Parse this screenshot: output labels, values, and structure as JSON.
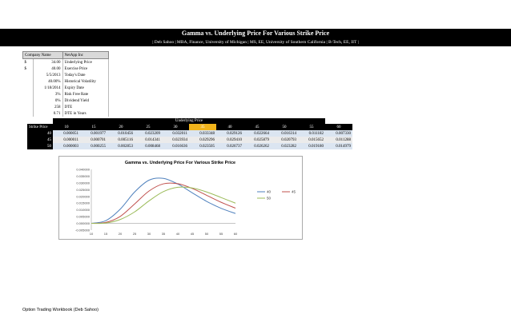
{
  "header": {
    "title": "Gamma vs. Underlying Price For Various Strike Price",
    "subtitle": "| Deb Sahoo | MBA, Finance, University of Michigan | MS, EE, University of Southern California | B-Tech, EE, IIT |"
  },
  "inputs": {
    "header": [
      "Company Name",
      "NetApp Inc"
    ],
    "rows": [
      {
        "cur": "$",
        "value": "34.00",
        "label": "Underlying Price"
      },
      {
        "cur": "$",
        "value": "40.00",
        "label": "Exercise Price"
      },
      {
        "cur": "",
        "value": "5/5/2013",
        "label": "Today's Date"
      },
      {
        "cur": "",
        "value": "40.00%",
        "label": "Historical Volatility"
      },
      {
        "cur": "",
        "value": "1/18/2014",
        "label": "Expiry Date"
      },
      {
        "cur": "",
        "value": "3%",
        "label": "Risk Free Rate"
      },
      {
        "cur": "",
        "value": "0%",
        "label": "Dividend Yield"
      },
      {
        "cur": "",
        "value": "258",
        "label": "DTE"
      },
      {
        "cur": "",
        "value": "0.71",
        "label": "DTE in Years"
      }
    ]
  },
  "grid": {
    "top_label": "Underlying Price",
    "row_header_label": "Strike Price",
    "columns": [
      "10",
      "15",
      "20",
      "25",
      "30",
      "35",
      "40",
      "45",
      "50",
      "55",
      "60"
    ],
    "highlight_column": "35",
    "rows": [
      {
        "strike": "40",
        "values": [
          "0.000051",
          "0.001977",
          "0.010456",
          "0.023209",
          "0.032011",
          "0.033348",
          "0.029126",
          "0.022664",
          "0.016314",
          "0.011182",
          "0.007330"
        ]
      },
      {
        "strike": "45",
        "values": [
          "0.000011",
          "0.000701",
          "0.005116",
          "0.014341",
          "0.023934",
          "0.029296",
          "0.029410",
          "0.025879",
          "0.020793",
          "0.015652",
          "0.011288"
        ]
      },
      {
        "strike": "50",
        "values": [
          "0.000003",
          "0.000255",
          "0.002853",
          "0.008468",
          "0.016636",
          "0.023505",
          "0.026737",
          "0.026262",
          "0.023282",
          "0.019180",
          "0.014979"
        ]
      }
    ]
  },
  "chart_data": {
    "type": "line",
    "title": "Gamma vs. Underlying Price For Various Strike Price",
    "x": [
      10,
      15,
      20,
      25,
      30,
      35,
      40,
      45,
      50,
      55,
      60
    ],
    "series": [
      {
        "name": "40",
        "color": "#4f81bd",
        "values": [
          5.1e-05,
          0.001977,
          0.010456,
          0.023209,
          0.032011,
          0.033348,
          0.029126,
          0.022664,
          0.016314,
          0.011182,
          0.00733
        ]
      },
      {
        "name": "45",
        "color": "#c0504d",
        "values": [
          1.1e-05,
          0.000701,
          0.005116,
          0.014341,
          0.023934,
          0.029296,
          0.02941,
          0.025879,
          0.020793,
          0.015652,
          0.011288
        ]
      },
      {
        "name": "50",
        "color": "#9bbb59",
        "values": [
          3e-06,
          0.000255,
          0.002853,
          0.008468,
          0.016636,
          0.023505,
          0.026737,
          0.026262,
          0.023282,
          0.01918,
          0.014979
        ]
      }
    ],
    "ylim": [
      -0.005,
      0.04
    ],
    "y_ticks": [
      "-0.005000",
      "0.000000",
      "0.005000",
      "0.010000",
      "0.015000",
      "0.020000",
      "0.025000",
      "0.030000",
      "0.035000",
      "0.040000"
    ],
    "x_ticks": [
      "10",
      "15",
      "20",
      "25",
      "30",
      "35",
      "40",
      "45",
      "50",
      "55",
      "60"
    ],
    "legend": "right",
    "grid": false
  },
  "footer": "Option Trading Workbook (Deb Sahoo)"
}
